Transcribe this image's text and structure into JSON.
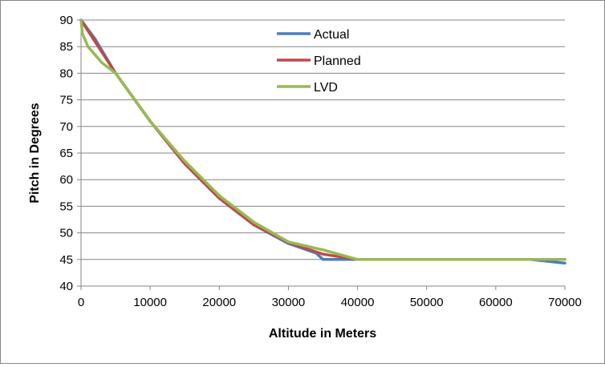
{
  "chart_data": {
    "type": "line",
    "title": "",
    "xlabel": "Altitude in Meters",
    "ylabel": "Pitch in Degrees",
    "xlim": [
      0,
      70000
    ],
    "ylim": [
      40,
      90
    ],
    "x_ticks": [
      "0",
      "10000",
      "20000",
      "30000",
      "40000",
      "50000",
      "60000",
      "70000"
    ],
    "y_ticks": [
      "40",
      "45",
      "50",
      "55",
      "60",
      "65",
      "70",
      "75",
      "80",
      "85",
      "90"
    ],
    "grid": {
      "horizontal": true,
      "vertical": false
    },
    "legend_position": "top-center",
    "series": [
      {
        "name": "Actual",
        "color": "#4a7ebb",
        "points": [
          [
            0,
            90
          ],
          [
            2000,
            86.5
          ],
          [
            5000,
            80
          ],
          [
            10000,
            71
          ],
          [
            15000,
            63
          ],
          [
            20000,
            56.5
          ],
          [
            25000,
            51.5
          ],
          [
            30000,
            48
          ],
          [
            34000,
            46.2
          ],
          [
            35000,
            45
          ],
          [
            40000,
            45
          ],
          [
            50000,
            45
          ],
          [
            65000,
            45
          ],
          [
            70000,
            44.3
          ]
        ]
      },
      {
        "name": "Planned",
        "color": "#be4b48",
        "points": [
          [
            0,
            90
          ],
          [
            2000,
            86
          ],
          [
            5000,
            80
          ],
          [
            10000,
            71
          ],
          [
            15000,
            63
          ],
          [
            20000,
            56.5
          ],
          [
            25000,
            51.5
          ],
          [
            30000,
            48.2
          ],
          [
            35000,
            46
          ],
          [
            40000,
            45
          ],
          [
            50000,
            45
          ],
          [
            60000,
            45
          ],
          [
            70000,
            45
          ]
        ]
      },
      {
        "name": "LVD",
        "color": "#98b954",
        "points": [
          [
            0,
            90
          ],
          [
            200,
            87.5
          ],
          [
            1000,
            85
          ],
          [
            3000,
            82
          ],
          [
            5000,
            80
          ],
          [
            10000,
            71
          ],
          [
            15000,
            63.5
          ],
          [
            20000,
            57
          ],
          [
            25000,
            52
          ],
          [
            30000,
            48.3
          ],
          [
            35000,
            46.8
          ],
          [
            40000,
            45
          ],
          [
            50000,
            45
          ],
          [
            65000,
            45
          ],
          [
            70000,
            45
          ]
        ]
      }
    ]
  }
}
